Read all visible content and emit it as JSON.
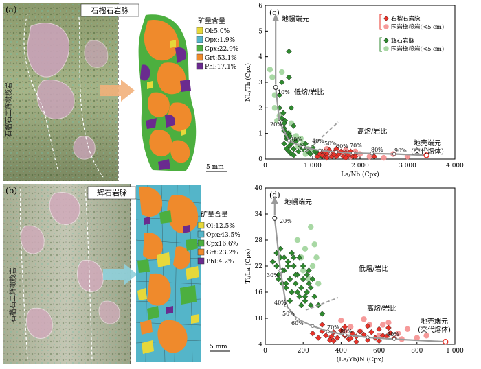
{
  "panel_a": {
    "label": "(a)",
    "title": "石榴石岩脉",
    "side_label": "石榴石二辉橄榄岩",
    "legend_title": "矿量含量",
    "legend": [
      {
        "text": "Ol:5.0%",
        "color": "#e6d83a"
      },
      {
        "text": "Opx:1.9%",
        "color": "#54b5c9"
      },
      {
        "text": "Cpx:22.9%",
        "color": "#4caf3f"
      },
      {
        "text": "Grt:53.1%",
        "color": "#ef8a2c"
      },
      {
        "text": "Phl:17.1%",
        "color": "#6a2b8f"
      }
    ],
    "scale": "5 mm"
  },
  "panel_b": {
    "label": "(b)",
    "title": "辉石岩脉",
    "side_label": "石榴石二辉橄榄岩",
    "legend_title": "矿量含量",
    "legend": [
      {
        "text": "Ol:12.5%",
        "color": "#e6d83a"
      },
      {
        "text": "Opx:43.5%",
        "color": "#54b5c9"
      },
      {
        "text": "Cpx16.6%",
        "color": "#4caf3f"
      },
      {
        "text": "Grt:23.2%",
        "color": "#ef8a2c"
      },
      {
        "text": "Phl:4.2%",
        "color": "#6a2b8f"
      }
    ],
    "scale": "5 mm"
  },
  "chart_data": [
    {
      "type": "scatter",
      "panel": "(c)",
      "xlabel": "La/Nb (Cpx)",
      "ylabel": "Nb/Th (Cpx)",
      "xlim": [
        0,
        4000
      ],
      "ylim": [
        0,
        6
      ],
      "xticks": [
        "0",
        "1 000",
        "2 000",
        "3 000",
        "4 000"
      ],
      "yticks": [
        "0",
        "1",
        "2",
        "3",
        "4",
        "5",
        "6"
      ],
      "legend": [
        {
          "text": "石榴石岩脉",
          "marker": "diamond",
          "color": "#e8332a"
        },
        {
          "text": "围岩橄榄岩(<5 cm)",
          "marker": "circle",
          "color": "#f58f8f"
        },
        {
          "text": "辉石岩脉",
          "marker": "diamond",
          "color": "#2f8a2f"
        },
        {
          "text": "围岩橄榄岩(<5 cm)",
          "marker": "circle",
          "color": "#9fd49a"
        }
      ],
      "annotations": [
        "地幔端元",
        "低熔/岩比",
        "高熔/岩比",
        "地壳端元",
        "(交代熔体)"
      ],
      "mixing_labels": [
        "10%",
        "20%",
        "30%",
        "40%",
        "50%",
        "60%",
        "70%",
        "80%",
        "90%"
      ],
      "mixing_curve": [
        [
          220,
          2.8
        ],
        [
          300,
          1.45
        ],
        [
          500,
          0.72
        ],
        [
          800,
          0.46
        ],
        [
          1150,
          0.34
        ],
        [
          1500,
          0.28
        ],
        [
          1850,
          0.24
        ],
        [
          2250,
          0.22
        ],
        [
          2720,
          0.2
        ],
        [
          3400,
          0.15
        ]
      ],
      "series": [
        {
          "name": "石榴石岩脉",
          "x": [
            1100,
            1150,
            1200,
            1250,
            1300,
            1350,
            1400,
            1450,
            1500,
            1550,
            1600,
            1650,
            1700,
            1750,
            1800,
            1850,
            1900,
            1200,
            1300,
            1500,
            1700,
            1900,
            2300,
            1250,
            1450
          ],
          "y": [
            0.1,
            0.2,
            0.3,
            0.1,
            0.2,
            0.35,
            0.1,
            0.25,
            0.1,
            0.2,
            0.3,
            0.1,
            0.25,
            0.15,
            0.3,
            0.1,
            0.2,
            0.15,
            0.05,
            0.4,
            0.05,
            0.1,
            0.1,
            0.3,
            0.18
          ]
        },
        {
          "name": "围岩橄榄岩(<5 cm)",
          "x": [
            1200,
            1300,
            1400,
            1500,
            1600,
            1700,
            1800,
            2000,
            2200,
            2500,
            2700,
            3000,
            1900
          ],
          "y": [
            0.2,
            0.4,
            0.15,
            0.3,
            0.2,
            0.35,
            0.1,
            0.2,
            0.1,
            0.05,
            0.2,
            0.1,
            0.3
          ]
        },
        {
          "name": "辉石岩脉",
          "x": [
            300,
            350,
            380,
            400,
            420,
            450,
            480,
            500,
            520,
            550,
            600,
            650,
            700,
            750,
            800,
            850,
            900,
            950,
            1000,
            1050,
            1100,
            1150,
            1200,
            400,
            450,
            500,
            550,
            600,
            300,
            350,
            400,
            450,
            500,
            500,
            550,
            400,
            600
          ],
          "y": [
            2.5,
            3.0,
            1.8,
            1.2,
            1.5,
            0.8,
            1.0,
            0.5,
            0.9,
            0.6,
            0.4,
            0.7,
            0.3,
            0.5,
            0.4,
            0.6,
            0.3,
            0.2,
            0.45,
            0.3,
            0.2,
            0.3,
            0.1,
            0.6,
            0.4,
            0.3,
            0.2,
            0.15,
            2.0,
            1.6,
            1.4,
            0.9,
            4.2,
            3.2,
            2.0,
            1.1,
            1.3
          ]
        },
        {
          "name": "围岩橄榄岩(<5 cm)",
          "x": [
            100,
            150,
            200,
            250,
            300,
            350,
            200,
            500,
            600,
            700,
            800,
            900,
            1000,
            650,
            750,
            850,
            550
          ],
          "y": [
            3.5,
            3.2,
            2.0,
            1.5,
            1.7,
            3.4,
            2.5,
            1.0,
            0.7,
            0.5,
            0.6,
            0.4,
            0.3,
            0.9,
            0.8,
            0.2,
            1.4
          ]
        }
      ]
    },
    {
      "type": "scatter",
      "panel": "(d)",
      "xlabel": "(La/Yb)N (Cpx)",
      "ylabel": "Ti/La (Cpx)",
      "xlim": [
        0,
        1000
      ],
      "ylim": [
        4,
        40
      ],
      "xticks": [
        "0",
        "200",
        "400",
        "600",
        "800",
        "1 000"
      ],
      "yticks": [
        "4",
        "10",
        "16",
        "22",
        "28",
        "34",
        "40"
      ],
      "annotations": [
        "地幔端元",
        "低熔/岩比",
        "高熔/岩比",
        "地壳端元",
        "(交代熔体)"
      ],
      "mixing_labels": [
        "20%",
        "30%",
        "40%",
        "50%",
        "60%",
        "70%",
        "80%",
        "90%"
      ],
      "mixing_curve": [
        [
          50,
          33
        ],
        [
          80,
          21
        ],
        [
          110,
          13
        ],
        [
          170,
          9.8
        ],
        [
          250,
          8.2
        ],
        [
          330,
          7.0
        ],
        [
          420,
          6.2
        ],
        [
          540,
          5.6
        ],
        [
          680,
          5.2
        ],
        [
          950,
          4.6
        ]
      ],
      "series": [
        {
          "name": "石榴石岩脉",
          "x": [
            250,
            280,
            300,
            320,
            340,
            360,
            380,
            400,
            420,
            440,
            460,
            480,
            500,
            520,
            540,
            560,
            580,
            600,
            620,
            640,
            660,
            680,
            300,
            360,
            420,
            480,
            540,
            600,
            650,
            350,
            450
          ],
          "y": [
            6.5,
            5.5,
            7.0,
            6.0,
            5.0,
            6.8,
            5.5,
            7.2,
            6.0,
            5.2,
            6.5,
            5.8,
            7.0,
            6.2,
            5.0,
            6.8,
            5.5,
            7.5,
            6.0,
            5.8,
            6.6,
            5.4,
            8.5,
            4.8,
            8.0,
            4.6,
            8.2,
            4.8,
            7.8,
            5.8,
            5.4
          ]
        },
        {
          "name": "围岩橄榄岩(<5 cm)",
          "x": [
            400,
            450,
            500,
            550,
            600,
            650,
            700,
            750,
            800,
            850,
            420,
            520,
            620,
            720
          ],
          "y": [
            9.5,
            8.0,
            7.0,
            8.5,
            6.0,
            9.0,
            6.5,
            7.5,
            5.5,
            6.0,
            7.0,
            9.8,
            8.5,
            5.2
          ]
        },
        {
          "name": "辉石岩脉",
          "x": [
            40,
            60,
            70,
            80,
            90,
            100,
            110,
            120,
            130,
            140,
            150,
            160,
            170,
            180,
            190,
            200,
            210,
            220,
            230,
            240,
            60,
            80,
            100,
            120,
            140,
            160,
            180,
            200,
            220,
            240,
            260,
            280,
            300,
            70,
            90,
            110,
            130,
            150,
            170,
            190,
            210,
            230,
            250
          ],
          "y": [
            23,
            22,
            20,
            24,
            18,
            21,
            17,
            23,
            19,
            16,
            22,
            18,
            20,
            15,
            17,
            19,
            14,
            16,
            18,
            13,
            25,
            26,
            24,
            22,
            25,
            20,
            24,
            22,
            20,
            17,
            15,
            13,
            11,
            19,
            21,
            18,
            14,
            24,
            16,
            13,
            15,
            21,
            19
          ]
        },
        {
          "name": "围岩橄榄岩(<5 cm)",
          "x": [
            240,
            260,
            250,
            210,
            190,
            170,
            230,
            270,
            280,
            200
          ],
          "y": [
            31,
            27,
            22,
            26,
            24,
            28,
            19,
            24,
            18,
            21
          ]
        }
      ]
    }
  ]
}
